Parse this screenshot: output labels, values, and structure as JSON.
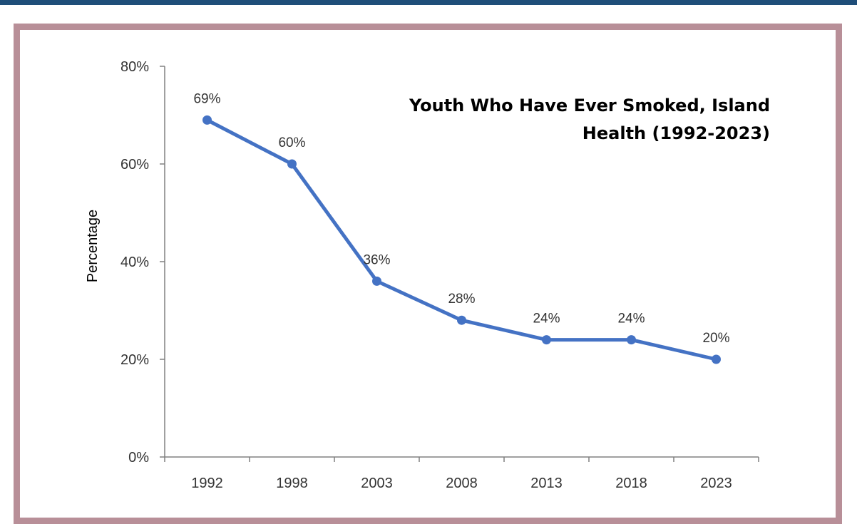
{
  "colors": {
    "top_bar": "#1f4e79",
    "frame_border": "#b88f98",
    "series_line": "#4472c4",
    "axis": "#808080"
  },
  "chart_data": {
    "type": "line",
    "title_lines": [
      "Youth Who Have Ever Smoked, Island",
      "Health (1992-2023)"
    ],
    "xlabel": "",
    "ylabel": "Percentage",
    "categories": [
      "1992",
      "1998",
      "2003",
      "2008",
      "2013",
      "2018",
      "2023"
    ],
    "values": [
      69,
      60,
      36,
      28,
      24,
      24,
      20
    ],
    "data_labels": [
      "69%",
      "60%",
      "36%",
      "28%",
      "24%",
      "24%",
      "20%"
    ],
    "y_ticks": [
      0,
      20,
      40,
      60,
      80
    ],
    "y_tick_labels": [
      "0%",
      "20%",
      "40%",
      "60%",
      "80%"
    ],
    "ylim": [
      0,
      80
    ],
    "grid": false,
    "legend": "none",
    "title_position": "top-right"
  }
}
